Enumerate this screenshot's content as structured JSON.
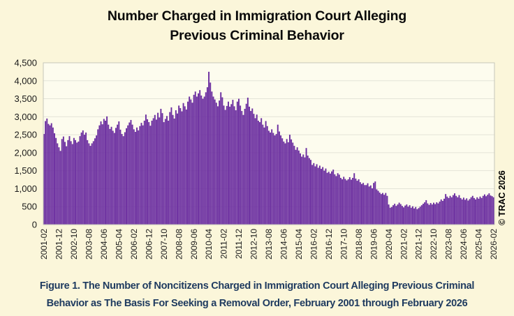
{
  "title": {
    "lines": [
      "Number Charged in Immigration Court Alleging",
      "Previous Criminal Behavior"
    ]
  },
  "caption": {
    "lines": [
      "Figure 1. The Number of Noncitizens Charged in Immigration Court Alleging Previous Criminal",
      "Behavior as The Basis For Seeking a Removal Order, February 2001 through February 2026"
    ]
  },
  "watermark": "© TRAC 2026",
  "colors": {
    "background": "#FBF6DA",
    "plot_background": "#FDFCEE",
    "bar": "#6C2FA0",
    "gridline": "#E4E4D8",
    "plot_border": "#C6C6BA",
    "tick_text": "#1A1A1A",
    "caption_text": "#1E3A5F"
  },
  "chart_data": {
    "type": "bar",
    "title": "Number Charged in Immigration Court Alleging Previous Criminal Behavior",
    "xlabel": "",
    "ylabel": "",
    "x_start": "2001-02",
    "x_end": "2026-02",
    "x_interval": "monthly",
    "ylim": [
      0,
      4500
    ],
    "grid": true,
    "ytick_step": 500,
    "ytick_labels": [
      "4,500",
      "4,000",
      "3,500",
      "3,000",
      "2,500",
      "2,000",
      "1,500",
      "1,000",
      "500",
      "0"
    ],
    "xtick_every_n_months": 10,
    "xtick_labels": [
      "2001-02",
      "2001-12",
      "2002-10",
      "2003-08",
      "2004-06",
      "2005-04",
      "2006-02",
      "2006-12",
      "2007-10",
      "2008-08",
      "2009-06",
      "2010-04",
      "2011-02",
      "2011-12",
      "2012-10",
      "2013-08",
      "2014-06",
      "2015-04",
      "2016-02",
      "2016-12",
      "2017-10",
      "2018-08",
      "2019-06",
      "2020-04",
      "2021-02",
      "2021-12",
      "2022-10",
      "2023-08",
      "2024-06",
      "2025-04",
      "2026-02"
    ],
    "values": [
      2520,
      2880,
      2950,
      2800,
      2760,
      2820,
      2700,
      2540,
      2410,
      2260,
      2150,
      2050,
      2380,
      2450,
      2300,
      2180,
      2350,
      2460,
      2320,
      2240,
      2410,
      2350,
      2280,
      2310,
      2460,
      2560,
      2620,
      2500,
      2560,
      2350,
      2260,
      2190,
      2260,
      2320,
      2400,
      2480,
      2650,
      2760,
      2870,
      2790,
      2940,
      2890,
      3010,
      2780,
      2660,
      2720,
      2610,
      2550,
      2690,
      2780,
      2870,
      2640,
      2520,
      2460,
      2570,
      2680,
      2760,
      2840,
      2910,
      2780,
      2650,
      2580,
      2700,
      2620,
      2740,
      2830,
      2760,
      2890,
      3060,
      2930,
      2850,
      2750,
      2890,
      2960,
      3050,
      2920,
      3110,
      2980,
      3220,
      3100,
      2850,
      2940,
      3020,
      2890,
      3130,
      3260,
      3050,
      2950,
      3180,
      3090,
      3310,
      3240,
      3150,
      3380,
      3290,
      3200,
      3420,
      3560,
      3480,
      3390,
      3610,
      3700,
      3560,
      3650,
      3740,
      3590,
      3500,
      3560,
      3680,
      3820,
      4250,
      3950,
      3700,
      3560,
      3480,
      3390,
      3290,
      3450,
      3680,
      3540,
      3310,
      3190,
      3300,
      3420,
      3280,
      3350,
      3470,
      3290,
      3180,
      3420,
      3500,
      3310,
      3160,
      3050,
      3220,
      3360,
      3530,
      3280,
      3160,
      3230,
      3080,
      2960,
      3060,
      2890,
      2850,
      2960,
      2780,
      2700,
      2880,
      2740,
      2610,
      2560,
      2650,
      2550,
      2480,
      2520,
      2780,
      2590,
      2480,
      2400,
      2310,
      2260,
      2380,
      2290,
      2500,
      2370,
      2280,
      2190,
      2080,
      2150,
      2060,
      1980,
      1890,
      1950,
      1870,
      2130,
      1920,
      1850,
      1800,
      1660,
      1710,
      1620,
      1680,
      1580,
      1640,
      1550,
      1600,
      1500,
      1560,
      1440,
      1470,
      1420,
      1480,
      1530,
      1400,
      1350,
      1430,
      1390,
      1300,
      1260,
      1330,
      1270,
      1230,
      1260,
      1320,
      1250,
      1300,
      1430,
      1280,
      1220,
      1260,
      1180,
      1130,
      1160,
      1100,
      1100,
      1150,
      1060,
      1090,
      1010,
      1160,
      1200,
      980,
      940,
      890,
      850,
      880,
      830,
      880,
      800,
      560,
      470,
      490,
      540,
      580,
      520,
      560,
      610,
      570,
      520,
      480,
      530,
      560,
      500,
      540,
      470,
      510,
      450,
      490,
      430,
      460,
      500,
      540,
      580,
      620,
      680,
      590,
      550,
      600,
      560,
      610,
      570,
      620,
      590,
      640,
      700,
      660,
      720,
      850,
      780,
      740,
      800,
      760,
      820,
      870,
      800,
      760,
      820,
      740,
      700,
      750,
      690,
      730,
      670,
      710,
      760,
      800,
      740,
      700,
      760,
      720,
      780,
      740,
      800,
      840,
      790,
      830,
      870,
      810,
      790,
      760
    ]
  }
}
